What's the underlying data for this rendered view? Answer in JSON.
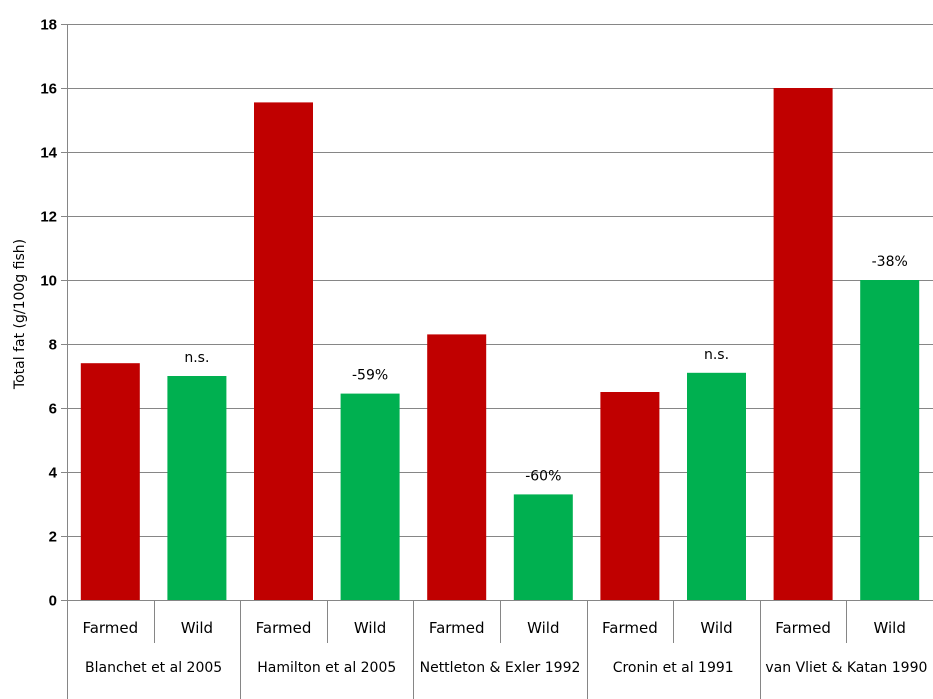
{
  "chart_data": {
    "type": "bar",
    "ylabel": "Total fat (g/100g fish)",
    "ylim": [
      0,
      18
    ],
    "yticks": [
      0,
      2,
      4,
      6,
      8,
      10,
      12,
      14,
      16,
      18
    ],
    "grid": true,
    "colors": {
      "Farmed": "#c00000",
      "Wild": "#00b050"
    },
    "groups": [
      {
        "label": "Blanchet et al 2005",
        "bars": [
          {
            "category": "Farmed",
            "value": 7.4
          },
          {
            "category": "Wild",
            "value": 7.0,
            "annotation": "n.s."
          }
        ]
      },
      {
        "label": "Hamilton et al 2005",
        "bars": [
          {
            "category": "Farmed",
            "value": 15.55
          },
          {
            "category": "Wild",
            "value": 6.45,
            "annotation": "-59%"
          }
        ]
      },
      {
        "label": "Nettleton & Exler 1992",
        "bars": [
          {
            "category": "Farmed",
            "value": 8.3
          },
          {
            "category": "Wild",
            "value": 3.3,
            "annotation": "-60%"
          }
        ]
      },
      {
        "label": "Cronin et al 1991",
        "bars": [
          {
            "category": "Farmed",
            "value": 6.5
          },
          {
            "category": "Wild",
            "value": 7.1,
            "annotation": "n.s."
          }
        ]
      },
      {
        "label": "van Vliet & Katan 1990",
        "bars": [
          {
            "category": "Farmed",
            "value": 16.0
          },
          {
            "category": "Wild",
            "value": 10.0,
            "annotation": "-38%"
          }
        ]
      }
    ]
  }
}
